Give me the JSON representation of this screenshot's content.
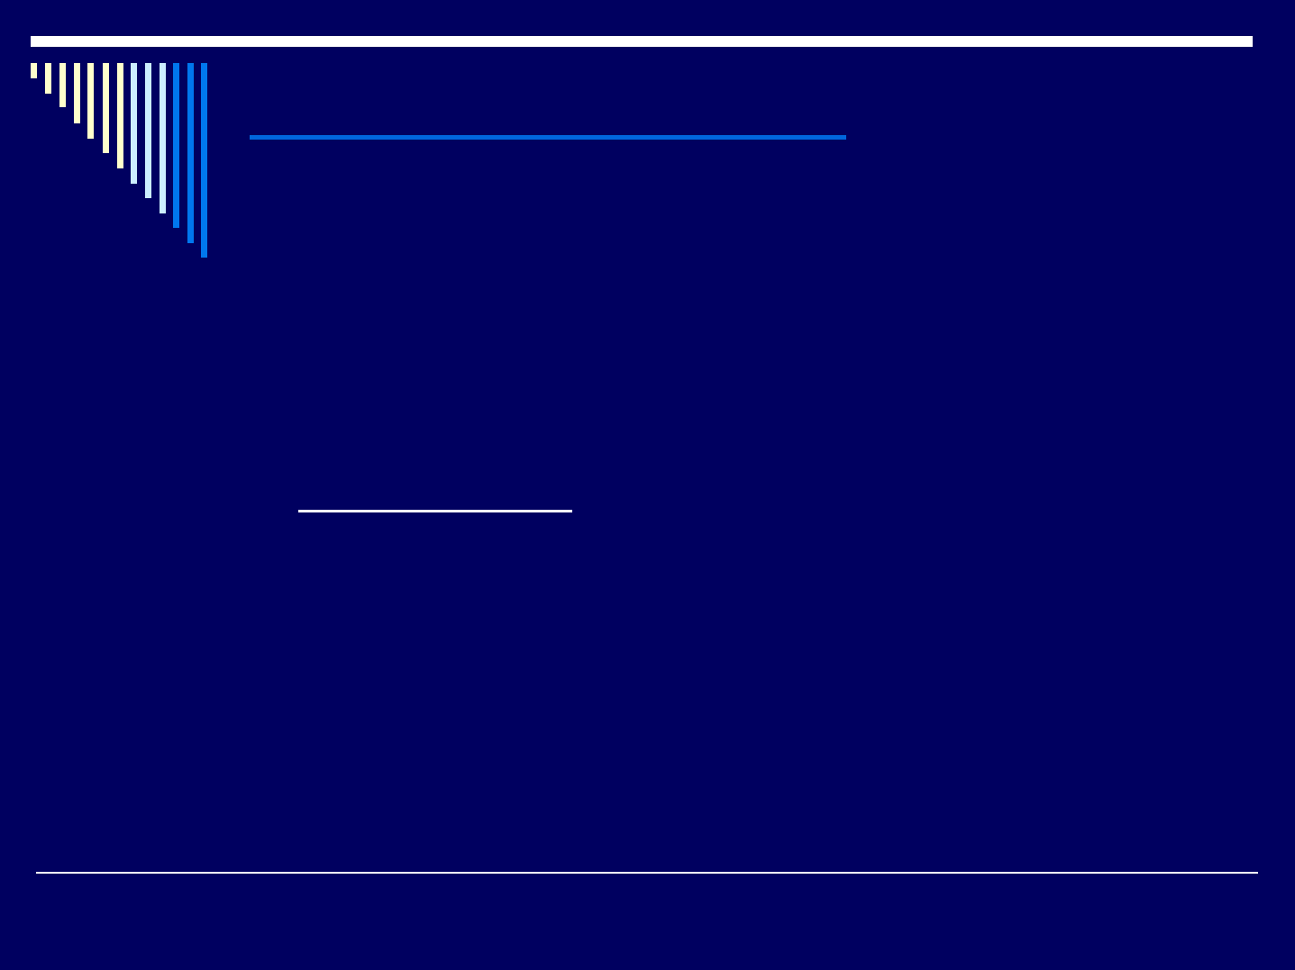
{
  "slide": {
    "background_color": "#000060",
    "colors": {
      "top_bar": "#ffffff",
      "bars_yellow": "#ffffcc",
      "bars_light_blue": "#cceeff",
      "bars_blue": "#0077ee",
      "title_rule": "#0066dd",
      "rules": "#ffffff"
    }
  }
}
